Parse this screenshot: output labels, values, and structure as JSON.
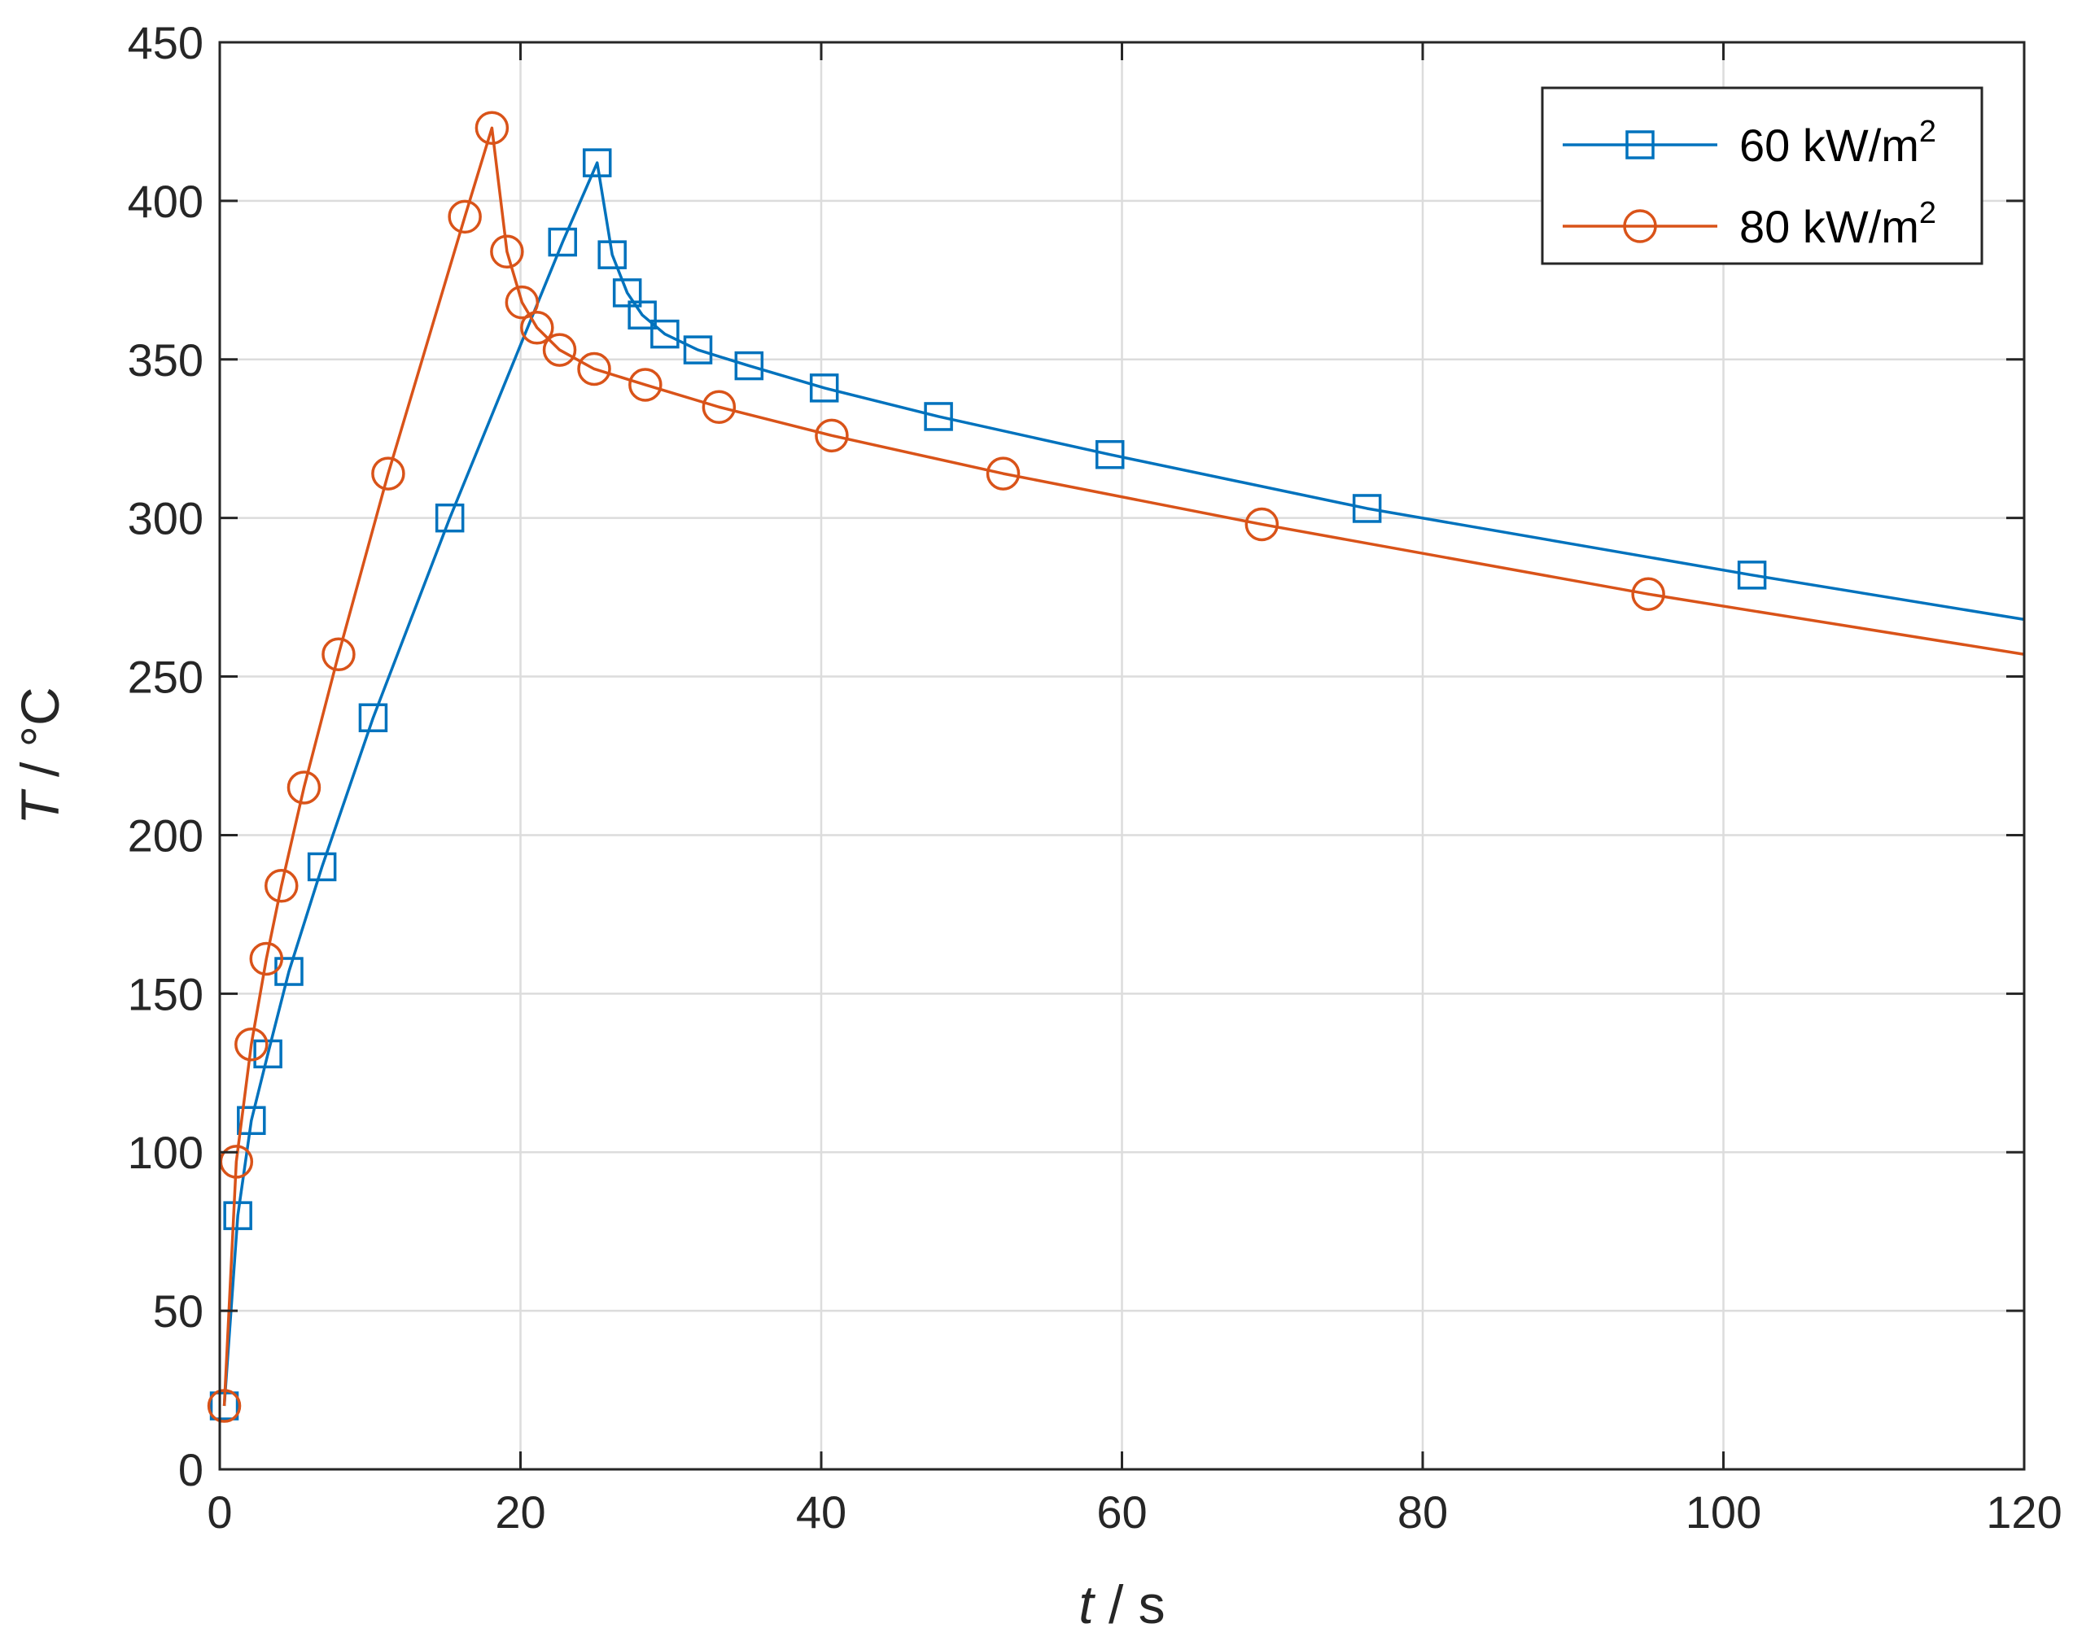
{
  "chart_data": {
    "type": "line",
    "xlabel": {
      "var": "t",
      "unit": " / s"
    },
    "ylabel": {
      "var": "T",
      "unit": " / °C"
    },
    "xlim": [
      0,
      120
    ],
    "ylim": [
      0,
      450
    ],
    "xticks": [
      0,
      20,
      40,
      60,
      80,
      100,
      120
    ],
    "yticks": [
      0,
      50,
      100,
      150,
      200,
      250,
      300,
      350,
      400,
      450
    ],
    "grid": true,
    "legend_position": "top-right",
    "series": [
      {
        "name": "60 kW/m",
        "name_sup": "2",
        "color": "#0072BD",
        "marker": "square",
        "markers": [
          [
            0.3,
            20
          ],
          [
            1.2,
            80
          ],
          [
            2.1,
            110
          ],
          [
            3.2,
            131
          ],
          [
            4.6,
            157
          ],
          [
            6.8,
            190
          ],
          [
            10.2,
            237
          ],
          [
            15.3,
            300
          ],
          [
            22.8,
            387
          ],
          [
            25.1,
            412
          ],
          [
            26.1,
            383
          ],
          [
            27.1,
            371
          ],
          [
            28.1,
            364
          ],
          [
            29.6,
            358
          ],
          [
            31.8,
            353
          ],
          [
            35.2,
            348
          ],
          [
            40.2,
            341
          ],
          [
            47.8,
            332
          ],
          [
            59.2,
            320
          ],
          [
            76.3,
            303
          ],
          [
            101.9,
            282
          ]
        ],
        "line": [
          [
            0.3,
            20
          ],
          [
            1.2,
            80
          ],
          [
            2.1,
            110
          ],
          [
            3.2,
            131
          ],
          [
            4.6,
            157
          ],
          [
            6.8,
            190
          ],
          [
            10.2,
            237
          ],
          [
            15.3,
            300
          ],
          [
            22.8,
            387
          ],
          [
            25.1,
            412
          ],
          [
            26.1,
            383
          ],
          [
            27.1,
            371
          ],
          [
            28.1,
            364
          ],
          [
            29.6,
            358
          ],
          [
            31.8,
            353
          ],
          [
            35.2,
            348
          ],
          [
            40.2,
            341
          ],
          [
            47.8,
            332
          ],
          [
            59.2,
            320
          ],
          [
            76.3,
            303
          ],
          [
            101.9,
            282
          ],
          [
            120,
            268
          ]
        ]
      },
      {
        "name": "80 kW/m",
        "name_sup": "2",
        "color": "#D95319",
        "marker": "circle",
        "markers": [
          [
            0.3,
            20
          ],
          [
            1.1,
            97
          ],
          [
            2.1,
            134
          ],
          [
            3.1,
            161
          ],
          [
            4.1,
            184
          ],
          [
            5.6,
            215
          ],
          [
            7.9,
            257
          ],
          [
            11.2,
            314
          ],
          [
            16.3,
            395
          ],
          [
            18.1,
            423
          ],
          [
            19.1,
            384
          ],
          [
            20.1,
            368
          ],
          [
            21.1,
            360
          ],
          [
            22.6,
            353
          ],
          [
            24.9,
            347
          ],
          [
            28.3,
            342
          ],
          [
            33.2,
            335
          ],
          [
            40.7,
            326
          ],
          [
            52.1,
            314
          ],
          [
            69.3,
            298
          ],
          [
            95.0,
            276
          ]
        ],
        "line": [
          [
            0.3,
            20
          ],
          [
            1.1,
            97
          ],
          [
            2.1,
            134
          ],
          [
            3.1,
            161
          ],
          [
            4.1,
            184
          ],
          [
            5.6,
            215
          ],
          [
            7.9,
            257
          ],
          [
            11.2,
            314
          ],
          [
            16.3,
            395
          ],
          [
            18.1,
            423
          ],
          [
            19.1,
            384
          ],
          [
            20.1,
            368
          ],
          [
            21.1,
            360
          ],
          [
            22.6,
            353
          ],
          [
            24.9,
            347
          ],
          [
            28.3,
            342
          ],
          [
            33.2,
            335
          ],
          [
            40.7,
            326
          ],
          [
            52.1,
            314
          ],
          [
            69.3,
            298
          ],
          [
            95.0,
            276
          ],
          [
            120,
            257
          ]
        ]
      }
    ]
  }
}
